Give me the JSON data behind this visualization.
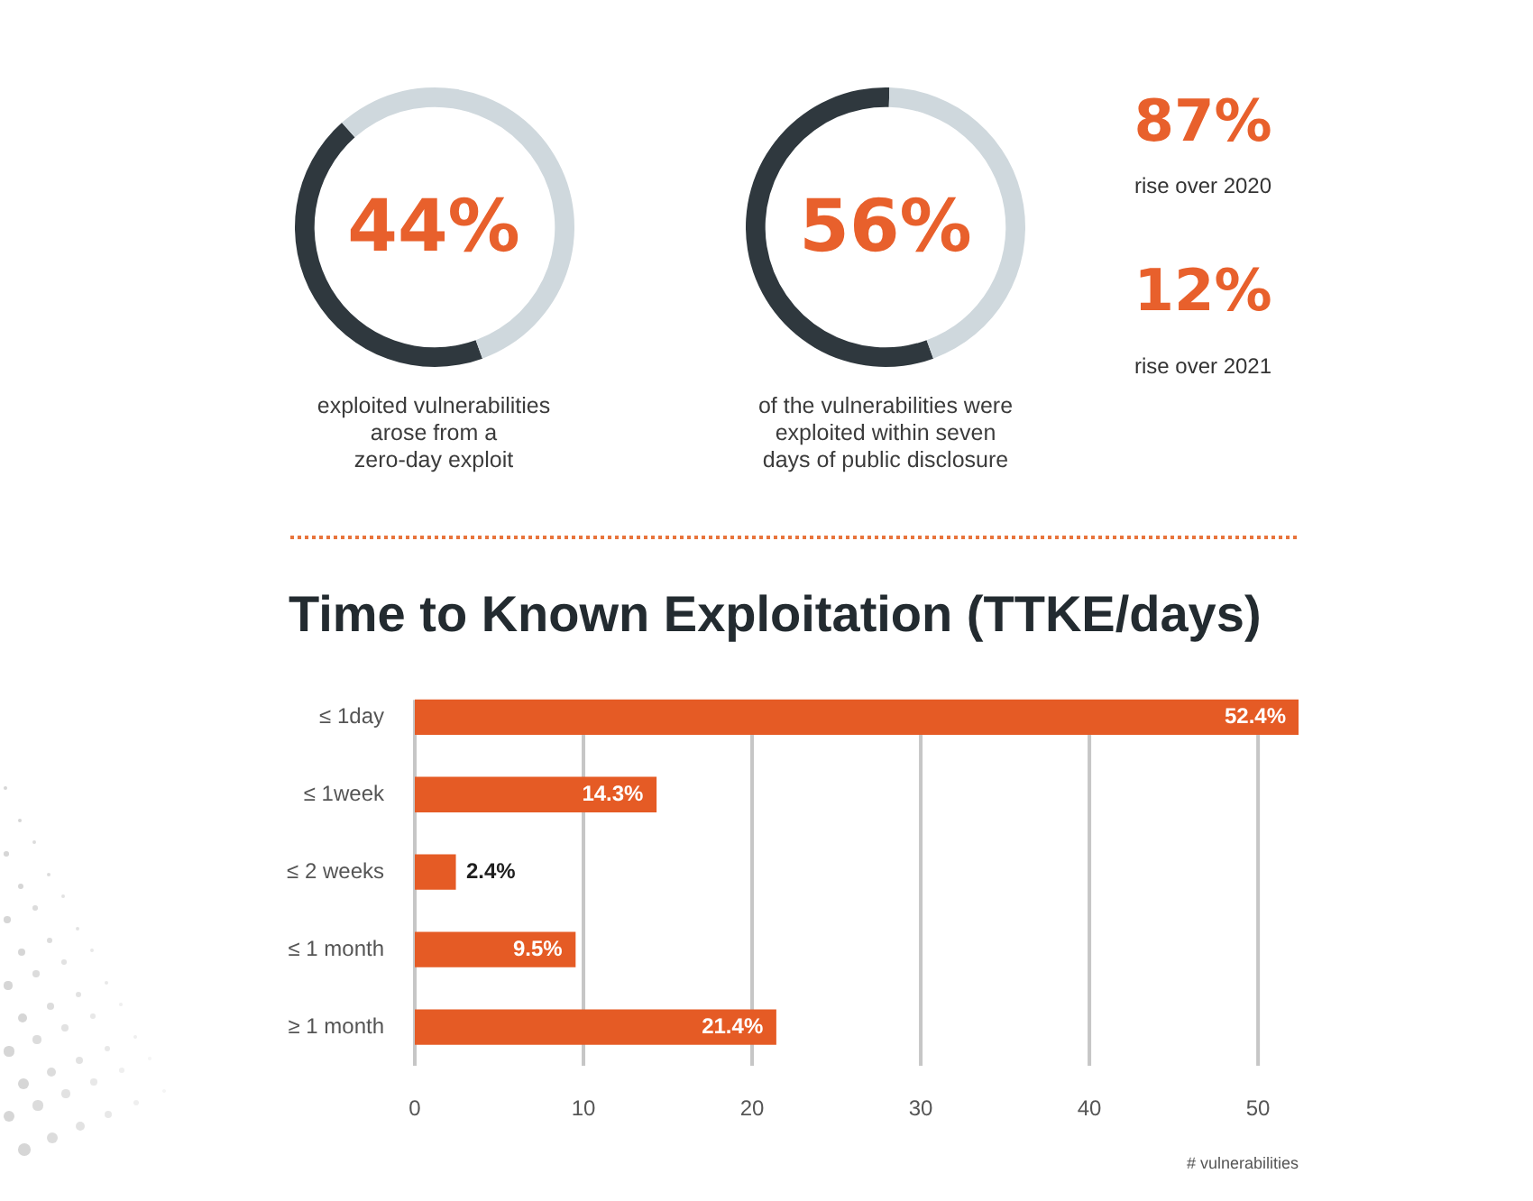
{
  "chart_data": [
    {
      "type": "donut",
      "categories": [
        null,
        null
      ],
      "values": [
        44,
        56
      ],
      "colors": [
        "#2f383e",
        "#cfd8dd"
      ],
      "annotations": [
        "44%",
        "exploited vulnerabilities\narose from a\nzero-day exploit"
      ]
    },
    {
      "type": "donut",
      "categories": [
        null,
        null
      ],
      "values": [
        56,
        44
      ],
      "colors": [
        "#2f383e",
        "#cfd8dd"
      ],
      "annotations": [
        "56%",
        "of the vulnerabilities were\nexploited within seven\ndays of public disclosure"
      ]
    },
    {
      "type": "other",
      "annotations": [
        "87%",
        "rise over 2020",
        "12%",
        "rise over 2021"
      ]
    },
    {
      "type": "bar",
      "orientation": "horizontal",
      "title": "Time to Known Exploitation (TTKE/days)",
      "xlabel": "# vulnerabilities",
      "categories": [
        "≤ 1day",
        "≤ 1week",
        "≤ 2 weeks",
        "≤ 1 month",
        "≥ 1 month"
      ],
      "values": [
        52.4,
        14.3,
        2.4,
        9.5,
        21.4
      ],
      "value_labels": [
        "52.4%",
        "14.3%",
        "2.4%",
        "9.5%",
        "21.4%"
      ],
      "color": "#e55b25",
      "xlim": [
        0,
        52.4
      ],
      "xticks": [
        0,
        10,
        20,
        30,
        40,
        50
      ],
      "grid": "x"
    }
  ]
}
